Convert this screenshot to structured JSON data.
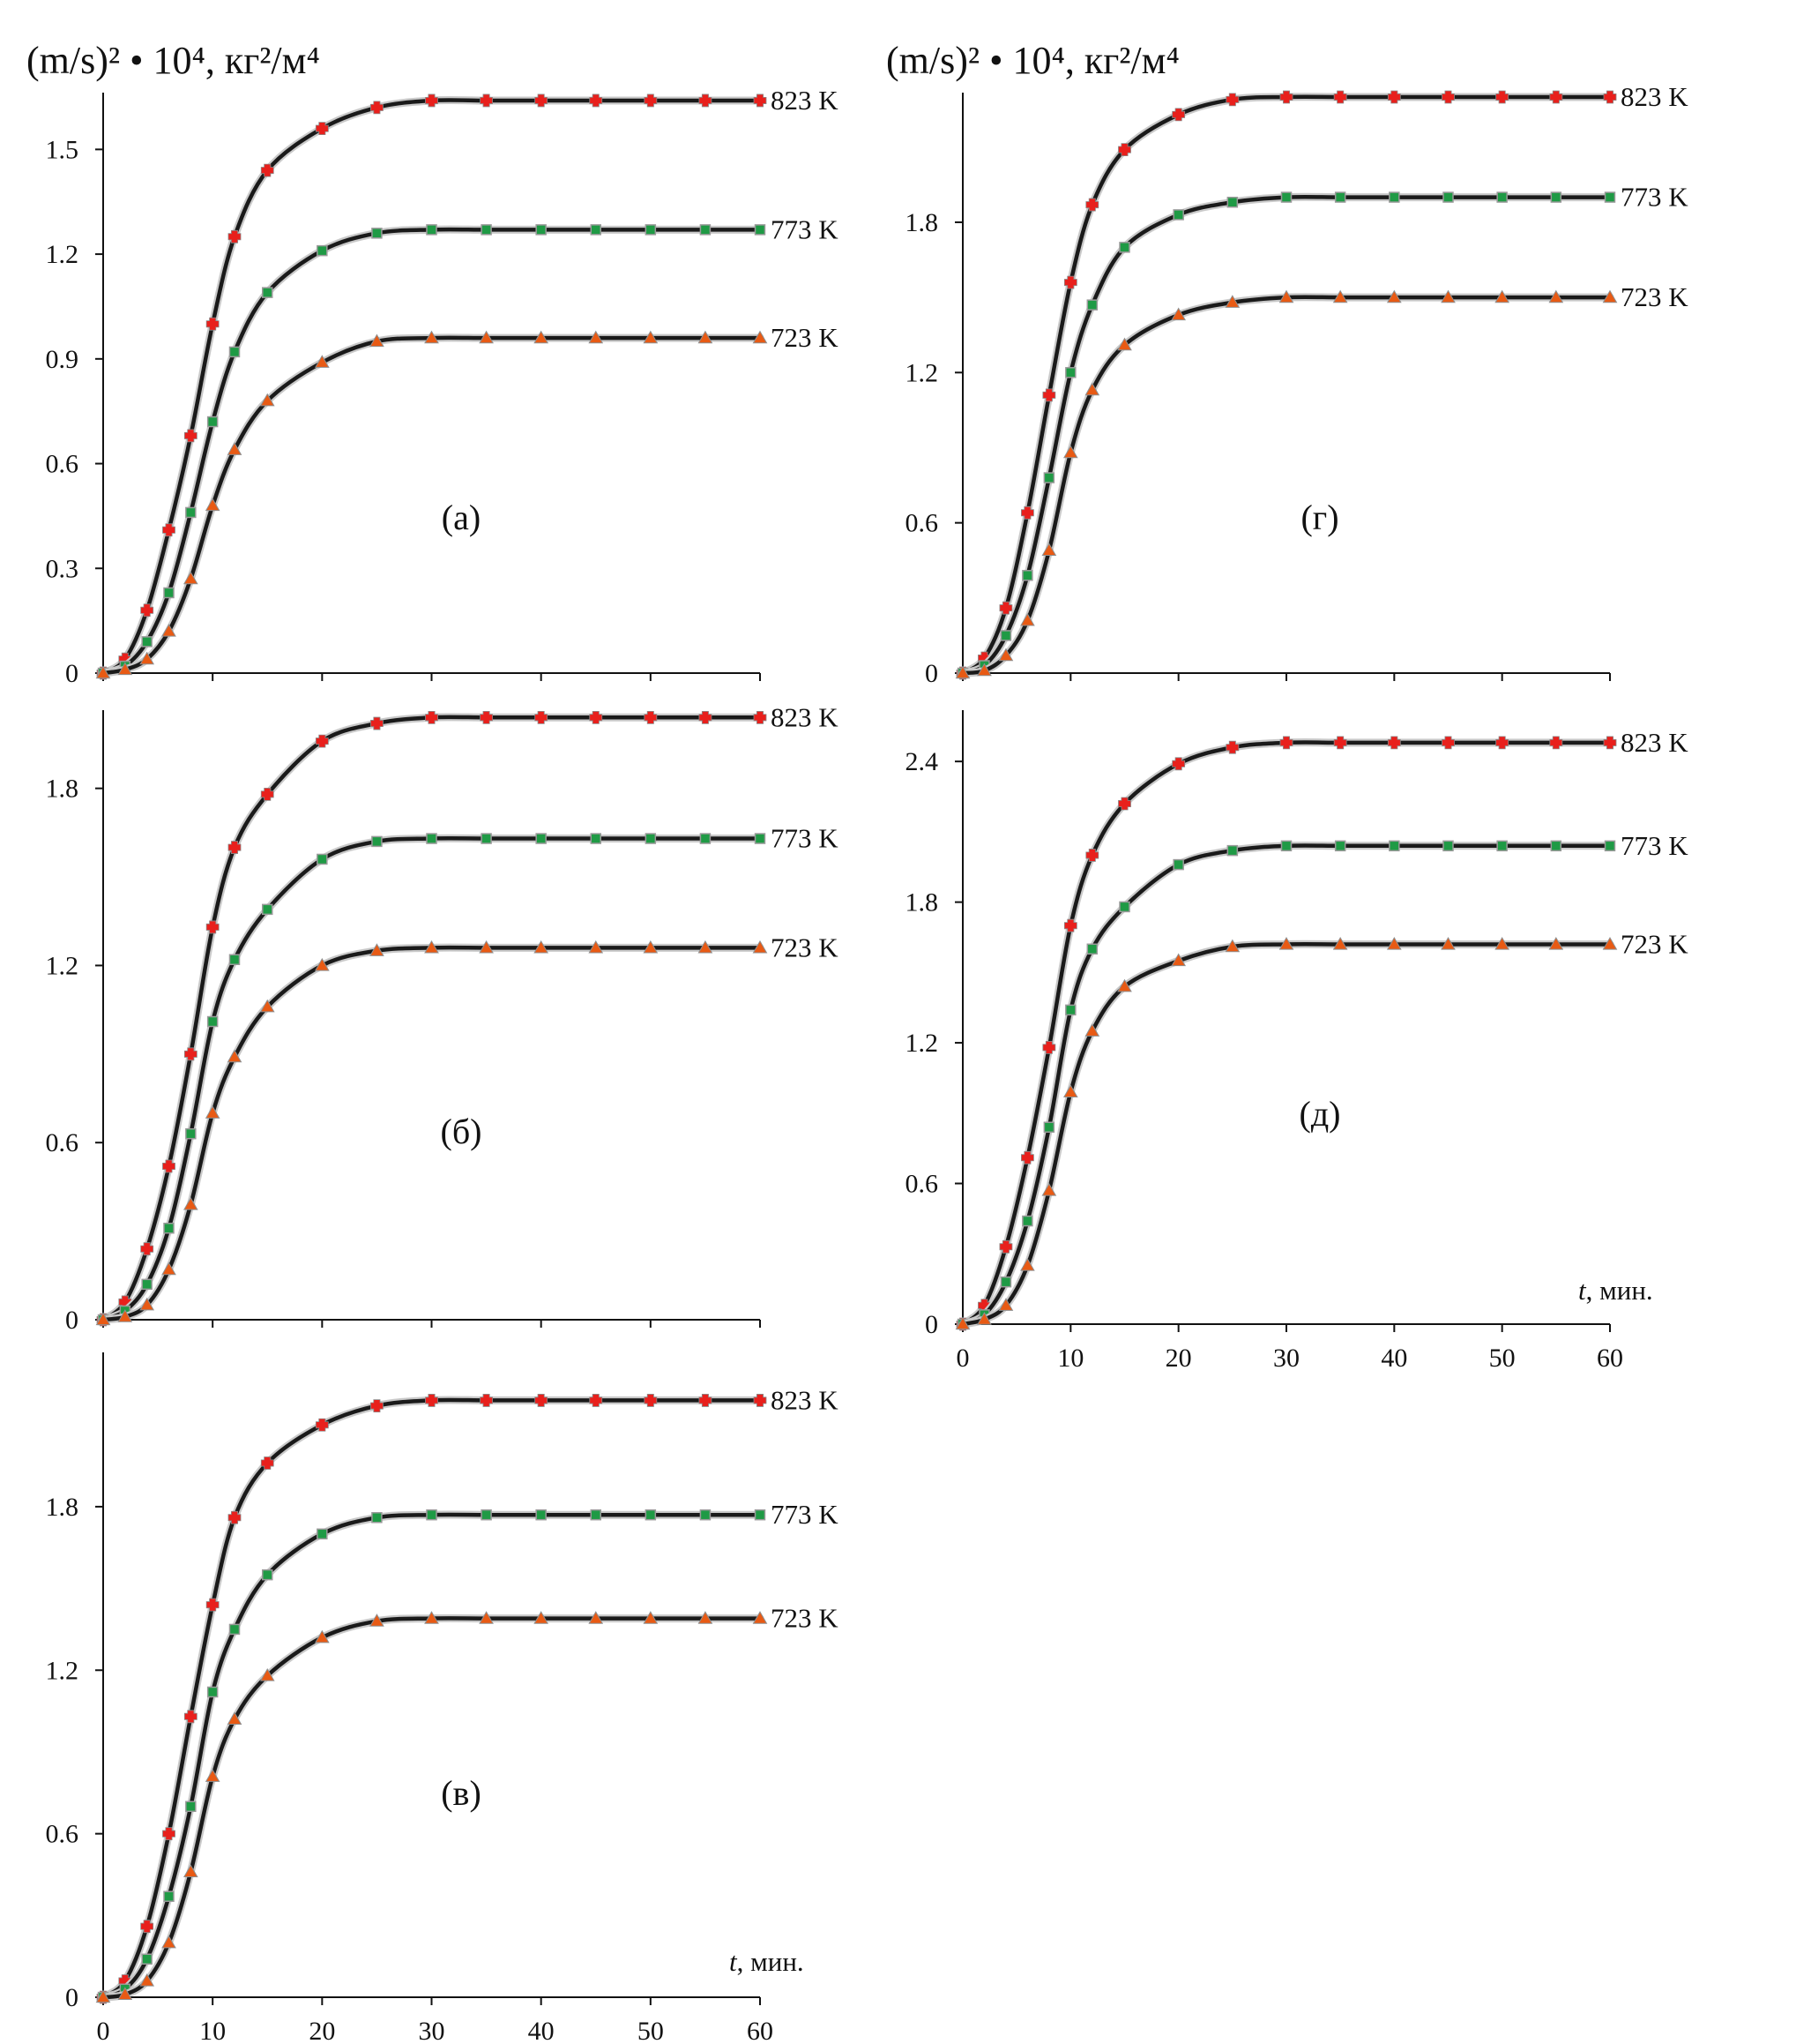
{
  "figure": {
    "ylabel_left": "(m/s)² • 10⁴, кг²/м⁴",
    "ylabel_right": "(m/s)² • 10⁴, кг²/м⁴",
    "xlabel": "t, мин.",
    "xticks": [
      "0",
      "10",
      "20",
      "30",
      "40",
      "50",
      "60"
    ]
  },
  "chart_data": [
    {
      "type": "line",
      "panel_label": "(а)",
      "x": [
        0,
        2,
        4,
        6,
        8,
        10,
        12,
        15,
        20,
        25,
        30,
        35,
        40,
        45,
        50,
        55,
        60
      ],
      "ylim": [
        0,
        1.65
      ],
      "yticks": [
        "0",
        "0.3",
        "0.6",
        "0.9",
        "1.2",
        "1.5"
      ],
      "ytick_values": [
        0,
        0.3,
        0.6,
        0.9,
        1.2,
        1.5
      ],
      "xticks_shown": false,
      "series": [
        {
          "name": "823 K",
          "marker": "cross",
          "color": "#e8201c",
          "values": [
            0,
            0.04,
            0.18,
            0.41,
            0.68,
            1.0,
            1.25,
            1.44,
            1.56,
            1.62,
            1.64,
            1.64,
            1.64,
            1.64,
            1.64,
            1.64,
            1.64
          ]
        },
        {
          "name": "773 K",
          "marker": "square",
          "color": "#1f9a45",
          "values": [
            0,
            0.02,
            0.09,
            0.23,
            0.46,
            0.72,
            0.92,
            1.09,
            1.21,
            1.26,
            1.27,
            1.27,
            1.27,
            1.27,
            1.27,
            1.27,
            1.27
          ]
        },
        {
          "name": "723 K",
          "marker": "triangle",
          "color": "#e85a14",
          "values": [
            0,
            0.01,
            0.04,
            0.12,
            0.27,
            0.48,
            0.64,
            0.78,
            0.89,
            0.95,
            0.96,
            0.96,
            0.96,
            0.96,
            0.96,
            0.96,
            0.96
          ]
        }
      ]
    },
    {
      "type": "line",
      "panel_label": "(б)",
      "x": [
        0,
        2,
        4,
        6,
        8,
        10,
        12,
        15,
        20,
        25,
        30,
        35,
        40,
        45,
        50,
        55,
        60
      ],
      "ylim": [
        0,
        2.05
      ],
      "yticks": [
        "0",
        "0.6",
        "1.2",
        "1.8"
      ],
      "ytick_values": [
        0,
        0.6,
        1.2,
        1.8
      ],
      "xticks_shown": false,
      "series": [
        {
          "name": "823 K",
          "marker": "cross",
          "color": "#e8201c",
          "values": [
            0,
            0.06,
            0.24,
            0.52,
            0.9,
            1.33,
            1.6,
            1.78,
            1.96,
            2.02,
            2.04,
            2.04,
            2.04,
            2.04,
            2.04,
            2.04,
            2.04
          ]
        },
        {
          "name": "773 K",
          "marker": "square",
          "color": "#1f9a45",
          "values": [
            0,
            0.03,
            0.12,
            0.31,
            0.63,
            1.01,
            1.22,
            1.39,
            1.56,
            1.62,
            1.63,
            1.63,
            1.63,
            1.63,
            1.63,
            1.63,
            1.63
          ]
        },
        {
          "name": "723 K",
          "marker": "triangle",
          "color": "#e85a14",
          "values": [
            0,
            0.01,
            0.05,
            0.17,
            0.39,
            0.7,
            0.89,
            1.06,
            1.2,
            1.25,
            1.26,
            1.26,
            1.26,
            1.26,
            1.26,
            1.26,
            1.26
          ]
        }
      ]
    },
    {
      "type": "line",
      "panel_label": "(в)",
      "x": [
        0,
        2,
        4,
        6,
        8,
        10,
        12,
        15,
        20,
        25,
        30,
        35,
        40,
        45,
        50,
        55,
        60
      ],
      "ylim": [
        0,
        2.35
      ],
      "yticks": [
        "0",
        "0.6",
        "1.2",
        "1.8"
      ],
      "ytick_values": [
        0,
        0.6,
        1.2,
        1.8
      ],
      "xticks_shown": true,
      "show_xlabel": true,
      "series": [
        {
          "name": "823 K",
          "marker": "cross",
          "color": "#e8201c",
          "values": [
            0,
            0.06,
            0.26,
            0.6,
            1.03,
            1.44,
            1.76,
            1.96,
            2.1,
            2.17,
            2.19,
            2.19,
            2.19,
            2.19,
            2.19,
            2.19,
            2.19
          ]
        },
        {
          "name": "773 K",
          "marker": "square",
          "color": "#1f9a45",
          "values": [
            0,
            0.03,
            0.14,
            0.37,
            0.7,
            1.12,
            1.35,
            1.55,
            1.7,
            1.76,
            1.77,
            1.77,
            1.77,
            1.77,
            1.77,
            1.77,
            1.77
          ]
        },
        {
          "name": "723 K",
          "marker": "triangle",
          "color": "#e85a14",
          "values": [
            0,
            0.01,
            0.06,
            0.2,
            0.46,
            0.81,
            1.02,
            1.18,
            1.32,
            1.38,
            1.39,
            1.39,
            1.39,
            1.39,
            1.39,
            1.39,
            1.39
          ]
        }
      ]
    },
    {
      "type": "line",
      "panel_label": "(г)",
      "x": [
        0,
        2,
        4,
        6,
        8,
        10,
        12,
        15,
        20,
        25,
        30,
        35,
        40,
        45,
        50,
        55,
        60
      ],
      "ylim": [
        0,
        2.3
      ],
      "yticks": [
        "0",
        "0.6",
        "1.2",
        "1.8"
      ],
      "ytick_values": [
        0,
        0.6,
        1.2,
        1.8
      ],
      "xticks_shown": false,
      "series": [
        {
          "name": "823 K",
          "marker": "cross",
          "color": "#e8201c",
          "values": [
            0,
            0.06,
            0.26,
            0.64,
            1.11,
            1.56,
            1.87,
            2.09,
            2.23,
            2.29,
            2.3,
            2.3,
            2.3,
            2.3,
            2.3,
            2.3,
            2.3
          ]
        },
        {
          "name": "773 K",
          "marker": "square",
          "color": "#1f9a45",
          "values": [
            0,
            0.03,
            0.15,
            0.39,
            0.78,
            1.2,
            1.47,
            1.7,
            1.83,
            1.88,
            1.9,
            1.9,
            1.9,
            1.9,
            1.9,
            1.9,
            1.9
          ]
        },
        {
          "name": "723 K",
          "marker": "triangle",
          "color": "#e85a14",
          "values": [
            0,
            0.01,
            0.07,
            0.21,
            0.49,
            0.88,
            1.13,
            1.31,
            1.43,
            1.48,
            1.5,
            1.5,
            1.5,
            1.5,
            1.5,
            1.5,
            1.5
          ]
        }
      ]
    },
    {
      "type": "line",
      "panel_label": "(д)",
      "x": [
        0,
        2,
        4,
        6,
        8,
        10,
        12,
        15,
        20,
        25,
        30,
        35,
        40,
        45,
        50,
        55,
        60
      ],
      "ylim": [
        0,
        2.6
      ],
      "yticks": [
        "0",
        "0.6",
        "1.2",
        "1.8",
        "2.4"
      ],
      "ytick_values": [
        0,
        0.6,
        1.2,
        1.8,
        2.4
      ],
      "xticks_shown": true,
      "show_xlabel": true,
      "series": [
        {
          "name": "823 K",
          "marker": "cross",
          "color": "#e8201c",
          "values": [
            0,
            0.08,
            0.33,
            0.71,
            1.18,
            1.7,
            2.0,
            2.22,
            2.39,
            2.46,
            2.48,
            2.48,
            2.48,
            2.48,
            2.48,
            2.48,
            2.48
          ]
        },
        {
          "name": "773 K",
          "marker": "square",
          "color": "#1f9a45",
          "values": [
            0,
            0.04,
            0.18,
            0.44,
            0.84,
            1.34,
            1.6,
            1.78,
            1.96,
            2.02,
            2.04,
            2.04,
            2.04,
            2.04,
            2.04,
            2.04,
            2.04
          ]
        },
        {
          "name": "723 K",
          "marker": "triangle",
          "color": "#e85a14",
          "values": [
            0,
            0.02,
            0.08,
            0.25,
            0.57,
            0.99,
            1.25,
            1.44,
            1.55,
            1.61,
            1.62,
            1.62,
            1.62,
            1.62,
            1.62,
            1.62,
            1.62
          ]
        }
      ]
    }
  ]
}
